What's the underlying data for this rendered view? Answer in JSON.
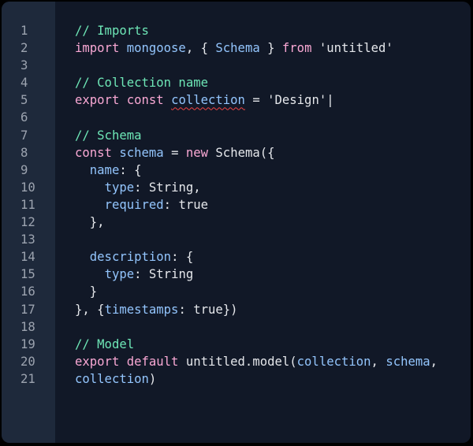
{
  "editor": {
    "colors": {
      "background": "#111827",
      "gutter": "#1e293b",
      "comment": "#6ee7b7",
      "keyword": "#f9a8d4",
      "identifier": "#93c5fd",
      "plain": "#e5e7eb",
      "error_underline": "#ef4444"
    },
    "lines": [
      {
        "n": "1",
        "tokens": [
          {
            "t": "// Imports",
            "c": "comment"
          }
        ]
      },
      {
        "n": "2",
        "tokens": [
          {
            "t": "import ",
            "c": "keyword"
          },
          {
            "t": "mongoose",
            "c": "ident"
          },
          {
            "t": ", { ",
            "c": "plain"
          },
          {
            "t": "Schema",
            "c": "ident"
          },
          {
            "t": " } ",
            "c": "plain"
          },
          {
            "t": "from ",
            "c": "keyword"
          },
          {
            "t": "'untitled'",
            "c": "plain"
          }
        ]
      },
      {
        "n": "3",
        "tokens": []
      },
      {
        "n": "4",
        "tokens": [
          {
            "t": "// Collection name",
            "c": "comment"
          }
        ]
      },
      {
        "n": "5",
        "tokens": [
          {
            "t": "export const ",
            "c": "keyword"
          },
          {
            "t": "collection",
            "c": "ident squiggle"
          },
          {
            "t": " = 'Design'|",
            "c": "plain"
          }
        ]
      },
      {
        "n": "6",
        "tokens": []
      },
      {
        "n": "7",
        "tokens": [
          {
            "t": "// Schema",
            "c": "comment"
          }
        ]
      },
      {
        "n": "8",
        "tokens": [
          {
            "t": "const ",
            "c": "keyword"
          },
          {
            "t": "schema",
            "c": "ident"
          },
          {
            "t": " = ",
            "c": "plain"
          },
          {
            "t": "new ",
            "c": "keyword"
          },
          {
            "t": "Schema({",
            "c": "plain"
          }
        ]
      },
      {
        "n": "9",
        "tokens": [
          {
            "t": "  ",
            "c": "plain"
          },
          {
            "t": "name",
            "c": "ident"
          },
          {
            "t": ": {",
            "c": "plain"
          }
        ]
      },
      {
        "n": "10",
        "tokens": [
          {
            "t": "    ",
            "c": "plain"
          },
          {
            "t": "type",
            "c": "ident"
          },
          {
            "t": ": String,",
            "c": "plain"
          }
        ]
      },
      {
        "n": "11",
        "tokens": [
          {
            "t": "    ",
            "c": "plain"
          },
          {
            "t": "required",
            "c": "ident"
          },
          {
            "t": ": true",
            "c": "plain"
          }
        ]
      },
      {
        "n": "12",
        "tokens": [
          {
            "t": "  },",
            "c": "plain"
          }
        ]
      },
      {
        "n": "13",
        "tokens": []
      },
      {
        "n": "14",
        "tokens": [
          {
            "t": "  ",
            "c": "plain"
          },
          {
            "t": "description",
            "c": "ident"
          },
          {
            "t": ": {",
            "c": "plain"
          }
        ]
      },
      {
        "n": "15",
        "tokens": [
          {
            "t": "    ",
            "c": "plain"
          },
          {
            "t": "type",
            "c": "ident"
          },
          {
            "t": ": String",
            "c": "plain"
          }
        ]
      },
      {
        "n": "16",
        "tokens": [
          {
            "t": "  }",
            "c": "plain"
          }
        ]
      },
      {
        "n": "17",
        "tokens": [
          {
            "t": "}, {",
            "c": "plain"
          },
          {
            "t": "timestamps",
            "c": "ident"
          },
          {
            "t": ": true})",
            "c": "plain"
          }
        ]
      },
      {
        "n": "18",
        "tokens": []
      },
      {
        "n": "19",
        "tokens": [
          {
            "t": "// Model",
            "c": "comment"
          }
        ]
      },
      {
        "n": "20",
        "tokens": [
          {
            "t": "export default ",
            "c": "keyword"
          },
          {
            "t": "untitled.model(",
            "c": "plain"
          },
          {
            "t": "collection",
            "c": "ident"
          },
          {
            "t": ", ",
            "c": "plain"
          },
          {
            "t": "schema",
            "c": "ident"
          },
          {
            "t": ",",
            "c": "plain"
          }
        ]
      },
      {
        "n": "21",
        "tokens": [
          {
            "t": "collection",
            "c": "ident"
          },
          {
            "t": ")",
            "c": "plain"
          }
        ]
      }
    ]
  }
}
